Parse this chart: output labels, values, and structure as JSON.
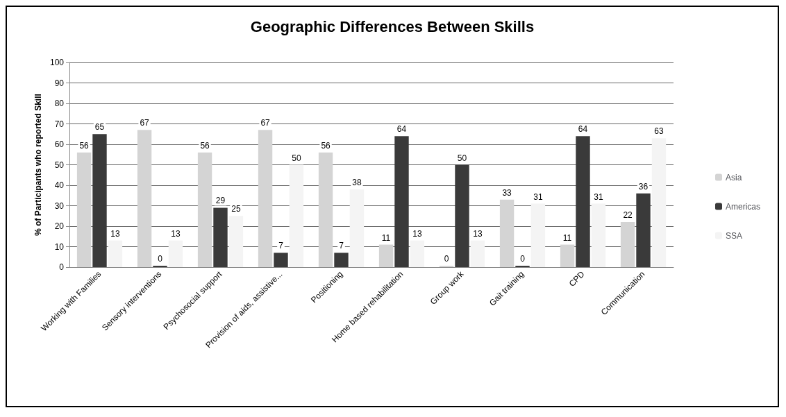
{
  "chart_data": {
    "type": "bar",
    "title": "Geographic Differences Between Skills",
    "ylabel": "% of Participants who reported Skill",
    "categories": [
      "Working with Families",
      "Sensory interventions",
      "Psychosocial support",
      "Provision of aids, assistive...",
      "Positioning",
      "Home based rehabilitation",
      "Group work",
      "Gait training",
      "CPD",
      "Communication"
    ],
    "series": [
      {
        "name": "Asia",
        "color": "#d4d4d4",
        "values": [
          56,
          67,
          56,
          67,
          56,
          11,
          0,
          33,
          11,
          22
        ]
      },
      {
        "name": "Americas",
        "color": "#3a3a3a",
        "values": [
          65,
          0,
          29,
          7,
          7,
          64,
          50,
          0,
          64,
          36
        ]
      },
      {
        "name": "SSA",
        "color": "#f4f4f4",
        "values": [
          13,
          13,
          25,
          50,
          38,
          13,
          13,
          31,
          31,
          63
        ]
      }
    ],
    "ylim": [
      0,
      100
    ],
    "yticks": [
      0,
      10,
      20,
      30,
      40,
      50,
      60,
      70,
      80,
      90,
      100
    ],
    "grid": "y",
    "legend": "right",
    "data_labels": true
  }
}
